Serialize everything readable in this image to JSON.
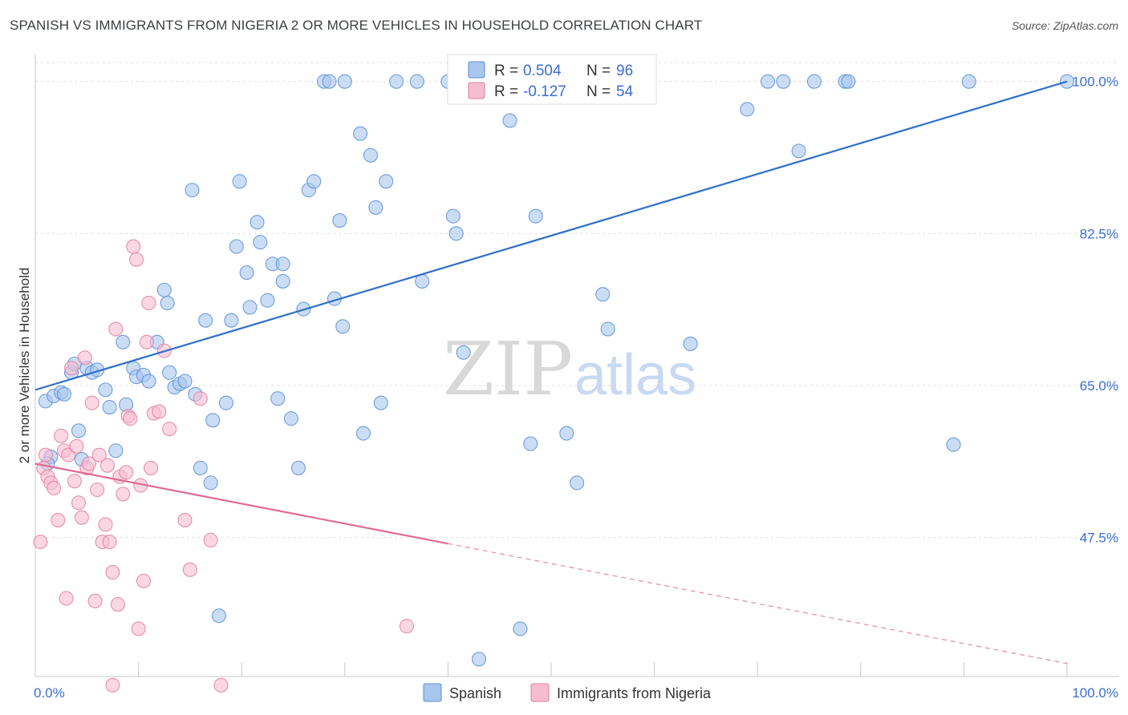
{
  "title": "SPANISH VS IMMIGRANTS FROM NIGERIA 2 OR MORE VEHICLES IN HOUSEHOLD CORRELATION CHART",
  "source": "Source: ZipAtlas.com",
  "watermark": {
    "zip": "ZIP",
    "atlas": "atlas"
  },
  "legend_top": [
    {
      "r_label": "R =",
      "r_value": "0.504",
      "n_label": "N =",
      "n_value": "96",
      "color": "#a8c6ee",
      "stroke": "#5b8fd6"
    },
    {
      "r_label": "R =",
      "r_value": "-0.127",
      "n_label": "N =",
      "n_value": "54",
      "color": "#f6bcd0",
      "stroke": "#e37fa0"
    }
  ],
  "colors": {
    "spanish_fill": "#a8c6ee",
    "spanish_stroke": "#5b8fd6",
    "spanish_line": "#2f6fc8",
    "nigeria_fill": "#f6bcd0",
    "nigeria_stroke": "#e37fa0",
    "nigeria_line": "#e06a93",
    "axis_label": "#3a6ed1"
  },
  "chart_data": {
    "type": "scatter",
    "ylabel": "2 or more Vehicles in Household",
    "xlim": [
      0,
      100
    ],
    "ylim": [
      31.5,
      102
    ],
    "x_tick_labels": [
      "0.0%",
      "100.0%"
    ],
    "y_ticks": [
      {
        "value": 100.0,
        "label": "100.0%"
      },
      {
        "value": 82.5,
        "label": "82.5%"
      },
      {
        "value": 65.0,
        "label": "65.0%"
      },
      {
        "value": 47.5,
        "label": "47.5%"
      }
    ],
    "series": [
      {
        "name": "Spanish",
        "trend": {
          "x0": 0,
          "y0": 64.5,
          "x1": 100,
          "y1": 100,
          "solid_to": 100
        },
        "points": [
          [
            1.0,
            63.2
          ],
          [
            1.5,
            56.8
          ],
          [
            1.2,
            56.0
          ],
          [
            1.8,
            63.8
          ],
          [
            2.5,
            64.2
          ],
          [
            2.8,
            64.0
          ],
          [
            3.5,
            66.5
          ],
          [
            3.8,
            67.5
          ],
          [
            4.2,
            59.8
          ],
          [
            4.5,
            56.5
          ],
          [
            5.0,
            67.0
          ],
          [
            5.5,
            66.5
          ],
          [
            6.0,
            66.8
          ],
          [
            6.8,
            64.5
          ],
          [
            7.2,
            62.5
          ],
          [
            7.8,
            57.5
          ],
          [
            8.5,
            70.0
          ],
          [
            8.8,
            62.8
          ],
          [
            9.5,
            67.0
          ],
          [
            9.8,
            66.0
          ],
          [
            10.5,
            66.2
          ],
          [
            11.0,
            65.5
          ],
          [
            11.8,
            70.0
          ],
          [
            12.5,
            76.0
          ],
          [
            12.8,
            74.5
          ],
          [
            13.0,
            66.5
          ],
          [
            13.5,
            64.8
          ],
          [
            14.0,
            65.2
          ],
          [
            14.5,
            65.5
          ],
          [
            15.5,
            64.0
          ],
          [
            15.2,
            87.5
          ],
          [
            16.0,
            55.5
          ],
          [
            16.5,
            72.5
          ],
          [
            17.0,
            53.8
          ],
          [
            17.2,
            61.0
          ],
          [
            17.8,
            38.5
          ],
          [
            18.5,
            63.0
          ],
          [
            19.0,
            72.5
          ],
          [
            19.5,
            81.0
          ],
          [
            19.8,
            88.5
          ],
          [
            20.5,
            78.0
          ],
          [
            20.8,
            74.0
          ],
          [
            21.5,
            83.8
          ],
          [
            21.8,
            81.5
          ],
          [
            22.5,
            74.8
          ],
          [
            23.0,
            79.0
          ],
          [
            23.5,
            63.5
          ],
          [
            24.0,
            79.0
          ],
          [
            24.0,
            77.0
          ],
          [
            24.8,
            61.2
          ],
          [
            25.5,
            55.5
          ],
          [
            26.0,
            73.8
          ],
          [
            26.5,
            87.5
          ],
          [
            27.0,
            88.5
          ],
          [
            28.0,
            100.0
          ],
          [
            28.5,
            100.0
          ],
          [
            29.0,
            75.0
          ],
          [
            29.5,
            84.0
          ],
          [
            29.8,
            71.8
          ],
          [
            30.0,
            100.0
          ],
          [
            31.5,
            94.0
          ],
          [
            31.8,
            59.5
          ],
          [
            32.5,
            91.5
          ],
          [
            33.0,
            85.5
          ],
          [
            33.5,
            63.0
          ],
          [
            34.0,
            88.5
          ],
          [
            35.0,
            100.0
          ],
          [
            37.0,
            100.0
          ],
          [
            37.5,
            77.0
          ],
          [
            40.0,
            100.0
          ],
          [
            40.5,
            84.5
          ],
          [
            40.8,
            82.5
          ],
          [
            41.5,
            68.8
          ],
          [
            43.0,
            33.5
          ],
          [
            45.0,
            100.0
          ],
          [
            46.0,
            95.5
          ],
          [
            47.0,
            37.0
          ],
          [
            48.0,
            58.3
          ],
          [
            48.5,
            84.5
          ],
          [
            51.5,
            59.5
          ],
          [
            52.5,
            53.8
          ],
          [
            55.0,
            75.5
          ],
          [
            56.5,
            100.0
          ],
          [
            55.5,
            71.5
          ],
          [
            57.0,
            100.0
          ],
          [
            63.5,
            69.8
          ],
          [
            69.0,
            96.8
          ],
          [
            71.0,
            100.0
          ],
          [
            72.5,
            100.0
          ],
          [
            74.0,
            92.0
          ],
          [
            75.5,
            100.0
          ],
          [
            78.5,
            100.0
          ],
          [
            78.8,
            100.0
          ],
          [
            90.5,
            100.0
          ],
          [
            89.0,
            58.2
          ],
          [
            100.0,
            100.0
          ]
        ]
      },
      {
        "name": "Immigrants from Nigeria",
        "trend": {
          "x0": 0,
          "y0": 56.0,
          "x1": 100,
          "y1": 33.0,
          "solid_to": 40
        },
        "points": [
          [
            0.5,
            47.0
          ],
          [
            0.8,
            55.5
          ],
          [
            1.0,
            57.0
          ],
          [
            1.2,
            54.5
          ],
          [
            1.5,
            53.8
          ],
          [
            1.8,
            53.2
          ],
          [
            2.2,
            49.5
          ],
          [
            2.5,
            59.2
          ],
          [
            2.8,
            57.5
          ],
          [
            3.0,
            40.5
          ],
          [
            3.2,
            57.0
          ],
          [
            3.5,
            67.0
          ],
          [
            3.8,
            54.0
          ],
          [
            4.0,
            58.0
          ],
          [
            4.2,
            51.5
          ],
          [
            4.5,
            49.8
          ],
          [
            4.8,
            68.2
          ],
          [
            5.0,
            55.5
          ],
          [
            5.2,
            56.0
          ],
          [
            5.5,
            63.0
          ],
          [
            5.8,
            40.2
          ],
          [
            6.0,
            53.0
          ],
          [
            6.2,
            57.0
          ],
          [
            6.5,
            47.0
          ],
          [
            6.8,
            49.0
          ],
          [
            7.0,
            55.8
          ],
          [
            7.2,
            47.0
          ],
          [
            7.5,
            43.5
          ],
          [
            7.8,
            71.5
          ],
          [
            8.0,
            39.8
          ],
          [
            8.2,
            54.5
          ],
          [
            8.5,
            52.5
          ],
          [
            8.8,
            55.0
          ],
          [
            9.0,
            61.5
          ],
          [
            9.2,
            61.2
          ],
          [
            9.5,
            81.0
          ],
          [
            9.8,
            79.5
          ],
          [
            10.0,
            37.0
          ],
          [
            10.2,
            53.5
          ],
          [
            10.5,
            42.5
          ],
          [
            10.8,
            70.0
          ],
          [
            11.0,
            74.5
          ],
          [
            11.2,
            55.5
          ],
          [
            11.5,
            61.8
          ],
          [
            12.0,
            62.0
          ],
          [
            12.5,
            69.0
          ],
          [
            13.0,
            60.0
          ],
          [
            14.5,
            49.5
          ],
          [
            15.0,
            43.8
          ],
          [
            16.0,
            63.5
          ],
          [
            17.0,
            47.2
          ],
          [
            18.0,
            30.5
          ],
          [
            36.0,
            37.3
          ],
          [
            7.5,
            30.5
          ]
        ]
      }
    ]
  }
}
